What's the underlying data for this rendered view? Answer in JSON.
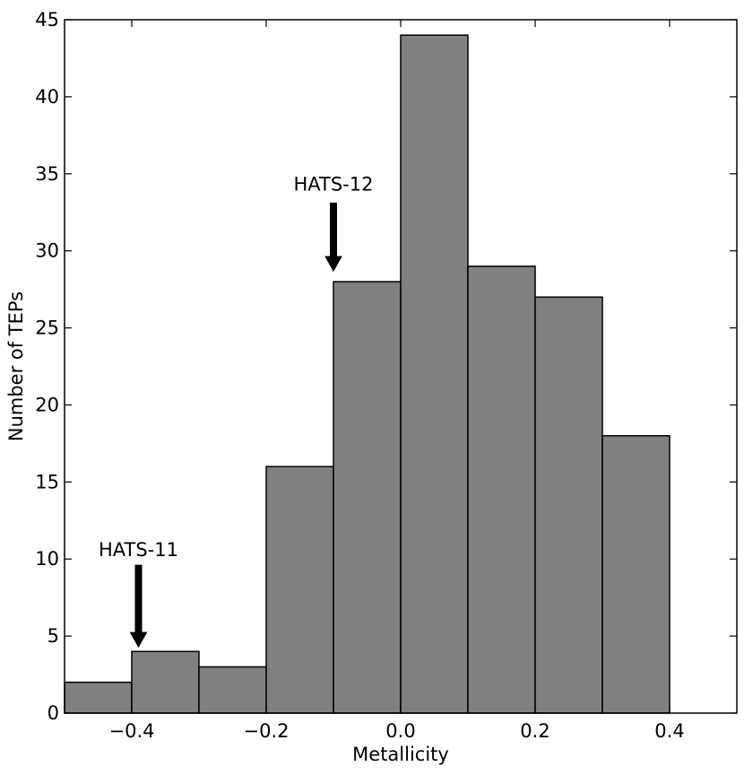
{
  "chart_data": {
    "type": "bar",
    "title": "",
    "xlabel": "Metallicity",
    "ylabel": "Number of TEPs",
    "xlim": [
      -0.5,
      0.5
    ],
    "ylim": [
      0,
      45
    ],
    "grid": false,
    "bar_color": "#808080",
    "edge_color": "#000000",
    "bin_width": 0.1,
    "bins": [
      {
        "left": -0.5,
        "right": -0.4,
        "value": 2
      },
      {
        "left": -0.4,
        "right": -0.3,
        "value": 4
      },
      {
        "left": -0.3,
        "right": -0.2,
        "value": 3
      },
      {
        "left": -0.2,
        "right": -0.1,
        "value": 16
      },
      {
        "left": -0.1,
        "right": 0.0,
        "value": 28
      },
      {
        "left": 0.0,
        "right": 0.1,
        "value": 44
      },
      {
        "left": 0.1,
        "right": 0.2,
        "value": 29
      },
      {
        "left": 0.2,
        "right": 0.3,
        "value": 27
      },
      {
        "left": 0.3,
        "right": 0.4,
        "value": 18
      }
    ],
    "x_ticks": [
      {
        "value": -0.4,
        "label": "−0.4"
      },
      {
        "value": -0.2,
        "label": "−0.2"
      },
      {
        "value": 0.0,
        "label": "0.0"
      },
      {
        "value": 0.2,
        "label": "0.2"
      },
      {
        "value": 0.4,
        "label": "0.4"
      }
    ],
    "y_ticks": [
      {
        "value": 0,
        "label": "0"
      },
      {
        "value": 5,
        "label": "5"
      },
      {
        "value": 10,
        "label": "10"
      },
      {
        "value": 15,
        "label": "15"
      },
      {
        "value": 20,
        "label": "20"
      },
      {
        "value": 25,
        "label": "25"
      },
      {
        "value": 30,
        "label": "30"
      },
      {
        "value": 35,
        "label": "35"
      },
      {
        "value": 40,
        "label": "40"
      },
      {
        "value": 45,
        "label": "45"
      }
    ],
    "annotations": [
      {
        "text": "HATS-11",
        "x": -0.39,
        "y_text": 10.2,
        "y_tail": 9.6,
        "y_head": 4.3
      },
      {
        "text": "HATS-12",
        "x": -0.1,
        "y_text": 33.9,
        "y_tail": 33.1,
        "y_head": 28.7
      }
    ]
  }
}
